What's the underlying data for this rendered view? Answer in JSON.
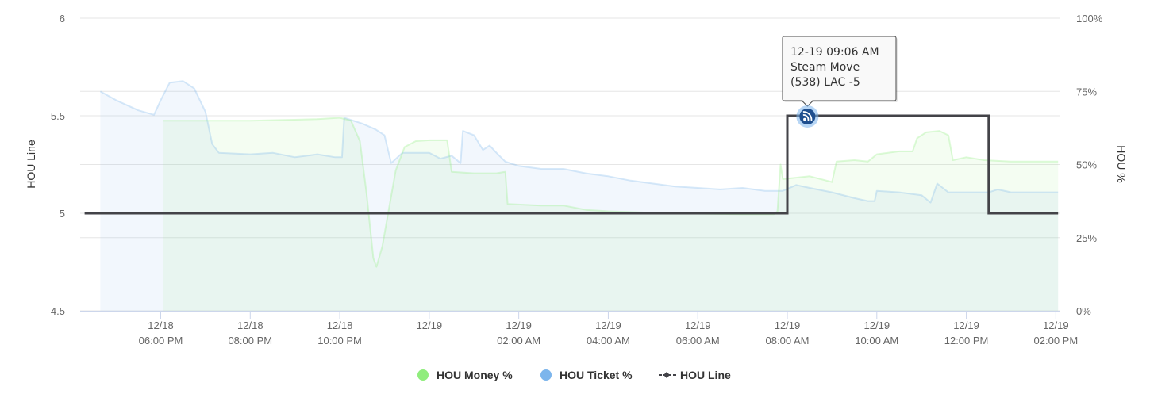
{
  "chart_data": {
    "type": "line",
    "title": "",
    "ylabel_left": "HOU Line",
    "ylabel_right": "HOU %",
    "y_left": {
      "ticks": [
        "6",
        "5.5",
        "5",
        "4.5"
      ],
      "range": [
        4.5,
        6
      ]
    },
    "y_right": {
      "ticks": [
        "100%",
        "75%",
        "50%",
        "25%",
        "0%"
      ],
      "range": [
        0,
        100
      ]
    },
    "x_ticks": [
      {
        "date": "12/18",
        "time": "06:00 PM"
      },
      {
        "date": "12/18",
        "time": "08:00 PM"
      },
      {
        "date": "12/18",
        "time": "10:00 PM"
      },
      {
        "date": "12/19",
        "time": ""
      },
      {
        "date": "12/19",
        "time": "02:00 AM"
      },
      {
        "date": "12/19",
        "time": "04:00 AM"
      },
      {
        "date": "12/19",
        "time": "06:00 AM"
      },
      {
        "date": "12/19",
        "time": "08:00 AM"
      },
      {
        "date": "12/19",
        "time": "10:00 AM"
      },
      {
        "date": "12/19",
        "time": "12:00 PM"
      },
      {
        "date": "12/19",
        "time": "02:00 PM"
      }
    ],
    "x_hour_ticks": [
      18,
      20,
      22,
      24,
      26,
      28,
      30,
      32,
      34,
      36,
      38
    ],
    "x_range_hours": [
      16.2,
      38.1
    ],
    "series": [
      {
        "name": "HOU Money %",
        "axis": "right",
        "color": "#90ed7d",
        "points": [
          [
            18.05,
            65
          ],
          [
            20.0,
            65
          ],
          [
            21.5,
            65.5
          ],
          [
            22.0,
            66
          ],
          [
            22.25,
            65
          ],
          [
            22.45,
            58
          ],
          [
            22.6,
            40
          ],
          [
            22.75,
            18
          ],
          [
            22.82,
            15
          ],
          [
            22.95,
            22
          ],
          [
            23.1,
            35
          ],
          [
            23.25,
            48
          ],
          [
            23.45,
            56
          ],
          [
            23.7,
            58
          ],
          [
            24.0,
            58.3
          ],
          [
            24.4,
            58.3
          ],
          [
            24.5,
            47.5
          ],
          [
            25.0,
            47
          ],
          [
            25.5,
            47
          ],
          [
            25.7,
            47.5
          ],
          [
            25.75,
            36.5
          ],
          [
            26.5,
            36
          ],
          [
            27.0,
            36
          ],
          [
            27.5,
            34.5
          ],
          [
            28.0,
            34
          ],
          [
            29.0,
            33.5
          ],
          [
            30.0,
            33.2
          ],
          [
            31.0,
            33
          ],
          [
            31.7,
            33
          ],
          [
            31.78,
            34
          ],
          [
            31.85,
            50
          ],
          [
            31.9,
            45
          ],
          [
            32.5,
            46
          ],
          [
            33.0,
            44
          ],
          [
            33.1,
            51
          ],
          [
            33.5,
            51.5
          ],
          [
            33.8,
            51
          ],
          [
            34.0,
            53.5
          ],
          [
            34.5,
            54.5
          ],
          [
            34.8,
            54.5
          ],
          [
            34.9,
            59
          ],
          [
            35.1,
            61
          ],
          [
            35.4,
            61.5
          ],
          [
            35.6,
            60
          ],
          [
            35.7,
            51.5
          ],
          [
            36.0,
            52.5
          ],
          [
            36.4,
            51.5
          ],
          [
            37.0,
            51
          ],
          [
            37.5,
            51
          ],
          [
            38.0,
            51
          ],
          [
            38.05,
            51
          ]
        ]
      },
      {
        "name": "HOU Ticket %",
        "axis": "right",
        "color": "#7cb5ec",
        "points": [
          [
            16.65,
            75
          ],
          [
            17.0,
            72
          ],
          [
            17.5,
            68.5
          ],
          [
            17.85,
            67
          ],
          [
            18.0,
            72
          ],
          [
            18.2,
            78
          ],
          [
            18.5,
            78.5
          ],
          [
            18.75,
            76
          ],
          [
            19.0,
            68
          ],
          [
            19.15,
            57
          ],
          [
            19.3,
            54
          ],
          [
            20.0,
            53.5
          ],
          [
            20.5,
            54
          ],
          [
            21.0,
            52.5
          ],
          [
            21.5,
            53.5
          ],
          [
            21.9,
            52.5
          ],
          [
            22.05,
            52.5
          ],
          [
            22.1,
            66
          ],
          [
            22.5,
            64
          ],
          [
            22.8,
            62
          ],
          [
            23.0,
            60
          ],
          [
            23.15,
            50.5
          ],
          [
            23.4,
            54
          ],
          [
            24.0,
            54
          ],
          [
            24.25,
            52
          ],
          [
            24.5,
            53
          ],
          [
            24.7,
            50.5
          ],
          [
            24.75,
            61.5
          ],
          [
            25.0,
            60
          ],
          [
            25.2,
            55
          ],
          [
            25.35,
            56.5
          ],
          [
            25.5,
            54
          ],
          [
            25.7,
            51
          ],
          [
            26.0,
            49.5
          ],
          [
            26.5,
            48.5
          ],
          [
            27.0,
            48.5
          ],
          [
            27.5,
            47
          ],
          [
            28.0,
            46
          ],
          [
            28.5,
            44.5
          ],
          [
            29.0,
            43.5
          ],
          [
            29.5,
            42.5
          ],
          [
            30.0,
            42
          ],
          [
            30.5,
            41.5
          ],
          [
            31.0,
            42
          ],
          [
            31.5,
            41
          ],
          [
            31.9,
            41
          ],
          [
            32.2,
            43
          ],
          [
            32.5,
            42
          ],
          [
            33.0,
            40.5
          ],
          [
            33.5,
            38.5
          ],
          [
            33.8,
            37.5
          ],
          [
            33.95,
            37.5
          ],
          [
            34.0,
            41
          ],
          [
            34.5,
            40.5
          ],
          [
            35.0,
            39.5
          ],
          [
            35.2,
            37
          ],
          [
            35.35,
            43.5
          ],
          [
            35.6,
            40.5
          ],
          [
            36.0,
            40.5
          ],
          [
            36.5,
            40.5
          ],
          [
            36.7,
            41.5
          ],
          [
            37.0,
            40.5
          ],
          [
            38.0,
            40.5
          ],
          [
            38.05,
            40.5
          ]
        ]
      },
      {
        "name": "HOU Line",
        "axis": "left",
        "color": "#434348",
        "points": [
          [
            16.3,
            5.0
          ],
          [
            32.0,
            5.0
          ],
          [
            32.0,
            5.5
          ],
          [
            36.5,
            5.5
          ],
          [
            36.5,
            5.0
          ],
          [
            38.05,
            5.0
          ]
        ]
      }
    ],
    "legend": {
      "placement": "bottom-center"
    },
    "grid": true,
    "annotation": {
      "x_hour": 32.45,
      "y_value": 5.5,
      "line1": "12-19 09:06 AM",
      "line2": "Steam Move",
      "line3": "(538) LAC -5",
      "icon": "steam-move-icon",
      "color": "#1f4f8f"
    }
  }
}
